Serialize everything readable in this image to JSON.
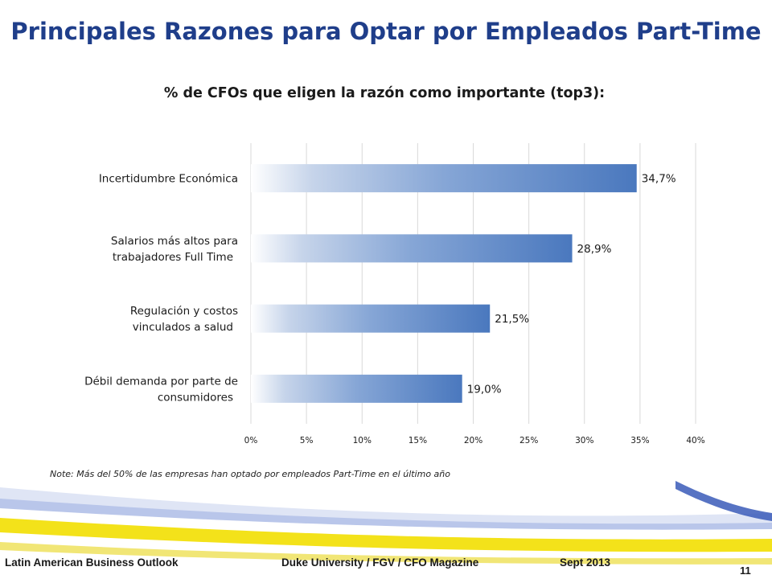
{
  "page": {
    "title": "Principales Razones para Optar por Empleados Part-Time",
    "note": "Note: Más del 50% de las empresas han optado por empleados Part-Time en el último año",
    "footer": {
      "left": "Latin American Business Outlook",
      "center": "Duke University / FGV / CFO Magazine",
      "right": "Sept 2013",
      "page_number": "11"
    },
    "colors": {
      "title": "#1f3e8a",
      "bar": "#4a78be",
      "grid": "#d9d9d9",
      "footer_band_yellow": "#f3e21a",
      "footer_band_blue": "#3a5bb8"
    }
  },
  "chart_data": {
    "type": "bar",
    "orientation": "horizontal",
    "title": "% de CFOs que eligen la razón como importante (top3):",
    "categories": [
      [
        "Incertidumbre Económica"
      ],
      [
        "Salarios más altos para",
        "trabajadores Full Time"
      ],
      [
        "Regulación y costos",
        "vinculados a salud"
      ],
      [
        "Débil demanda por parte de",
        "consumidores"
      ]
    ],
    "values": [
      34.7,
      28.9,
      21.5,
      19.0
    ],
    "data_labels": [
      "34,7%",
      "28,9%",
      "21,5%",
      "19,0%"
    ],
    "xlim": [
      0,
      40
    ],
    "xticks": [
      0,
      5,
      10,
      15,
      20,
      25,
      30,
      35,
      40
    ],
    "xtick_labels": [
      "0%",
      "5%",
      "10%",
      "15%",
      "20%",
      "25%",
      "30%",
      "35%",
      "40%"
    ],
    "grid": true,
    "legend": "none"
  }
}
